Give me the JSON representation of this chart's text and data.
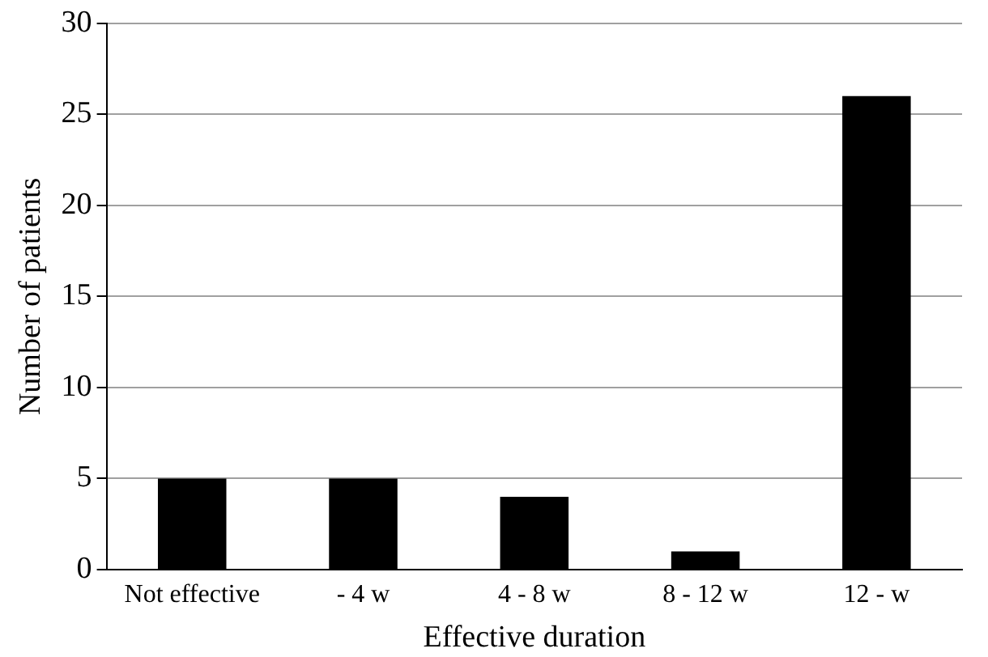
{
  "chart_data": {
    "type": "bar",
    "xlabel": "Effective duration",
    "ylabel": "Number of patients",
    "categories": [
      "Not effective",
      "- 4 w",
      "4 - 8 w",
      "8 - 12 w",
      "12 - w"
    ],
    "values": [
      5,
      5,
      4,
      1,
      26
    ],
    "color": "#000000",
    "ylim": [
      0,
      30
    ],
    "yticks": [
      0,
      5,
      10,
      15,
      20,
      25,
      30
    ],
    "grid": "y",
    "legend": false
  }
}
